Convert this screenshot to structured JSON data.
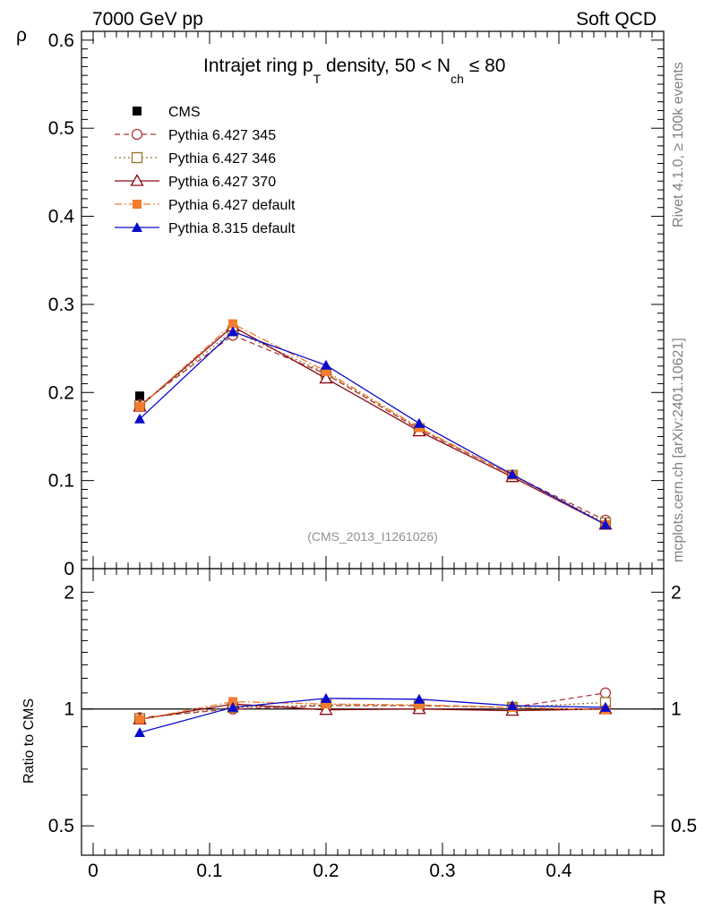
{
  "header": {
    "left": "7000 GeV pp",
    "right": "Soft QCD"
  },
  "side_labels": {
    "rivet": "Rivet 4.1.0, ≥ 100k events",
    "mcplots": "mcplots.cern.ch [arXiv:2401.10621]"
  },
  "chart_data": [
    {
      "type": "line",
      "panel": "main",
      "title": "Intrajet ring pT density, 50 < Nch ≤ 80",
      "title_parts": {
        "a": "Intrajet ring p",
        "a_sub": "T",
        "b": " density, 50 < N",
        "b_sub": "ch",
        "c": " ≤ 80"
      },
      "ylabel": "ρ",
      "xlabel": "R",
      "annotation": "(CMS_2013_I1261026)",
      "xlim": [
        -0.01,
        0.49
      ],
      "ylim": [
        0,
        0.61
      ],
      "xticks": [
        0,
        0.1,
        0.2,
        0.3,
        0.4
      ],
      "xtick_labels": [
        "0",
        "0.1",
        "0.2",
        "0.3",
        "0.4"
      ],
      "yticks": [
        0,
        0.1,
        0.2,
        0.3,
        0.4,
        0.5,
        0.6
      ],
      "ytick_labels": [
        "0",
        "0.1",
        "0.2",
        "0.3",
        "0.4",
        "0.5",
        "0.6"
      ],
      "x": [
        0.04,
        0.12,
        0.2,
        0.28,
        0.36,
        0.44
      ],
      "series": [
        {
          "name": "CMS",
          "color": "#000000",
          "marker": "square",
          "style": "none",
          "values": [
            0.196,
            0.267,
            0.217,
            0.156,
            0.105,
            0.05
          ]
        },
        {
          "name": "Pythia 6.427 345",
          "color": "#b2343c",
          "marker": "circle-open",
          "style": "dashed",
          "values": [
            0.186,
            0.265,
            0.221,
            0.158,
            0.106,
            0.055
          ]
        },
        {
          "name": "Pythia 6.427 346",
          "color": "#997326",
          "marker": "square-open",
          "style": "dotted",
          "values": [
            0.185,
            0.27,
            0.222,
            0.159,
            0.106,
            0.052
          ]
        },
        {
          "name": "Pythia 6.427 370",
          "color": "#8b0a14",
          "marker": "triangle-open",
          "style": "solid",
          "values": [
            0.184,
            0.275,
            0.216,
            0.156,
            0.104,
            0.05
          ]
        },
        {
          "name": "Pythia 6.427 default",
          "color": "#f47c2e",
          "marker": "square-filled",
          "style": "dashdot",
          "values": [
            0.184,
            0.278,
            0.224,
            0.16,
            0.106,
            0.05
          ]
        },
        {
          "name": "Pythia 8.315 default",
          "color": "#0a0acc",
          "marker": "triangle-filled",
          "style": "solid",
          "values": [
            0.17,
            0.269,
            0.231,
            0.165,
            0.107,
            0.05
          ]
        }
      ]
    },
    {
      "type": "line",
      "panel": "ratio",
      "ylabel": "Ratio to CMS",
      "xlabel": "R",
      "ylim": [
        0.42,
        2.3
      ],
      "yscale": "log",
      "yticks": [
        0.5,
        1,
        2
      ],
      "ytick_labels": [
        "0.5",
        "1",
        "2"
      ],
      "reference_line": 1,
      "x": [
        0.04,
        0.12,
        0.2,
        0.28,
        0.36,
        0.44
      ],
      "series": [
        {
          "name": "Pythia 6.427 345",
          "color": "#b2343c",
          "marker": "circle-open",
          "style": "dashed",
          "values": [
            0.95,
            1.0,
            1.02,
            1.02,
            1.01,
            1.1
          ]
        },
        {
          "name": "Pythia 6.427 346",
          "color": "#997326",
          "marker": "square-open",
          "style": "dotted",
          "values": [
            0.945,
            1.01,
            1.025,
            1.02,
            1.01,
            1.04
          ]
        },
        {
          "name": "Pythia 6.427 370",
          "color": "#8b0a14",
          "marker": "triangle-open",
          "style": "solid",
          "values": [
            0.94,
            1.03,
            0.995,
            1.0,
            0.99,
            1.0
          ]
        },
        {
          "name": "Pythia 6.427 default",
          "color": "#f47c2e",
          "marker": "square-filled",
          "style": "dashdot",
          "values": [
            0.94,
            1.045,
            1.03,
            1.025,
            1.01,
            0.995
          ]
        },
        {
          "name": "Pythia 8.315 default",
          "color": "#0a0acc",
          "marker": "triangle-filled",
          "style": "solid",
          "values": [
            0.87,
            1.01,
            1.065,
            1.06,
            1.02,
            1.01
          ]
        }
      ]
    }
  ]
}
